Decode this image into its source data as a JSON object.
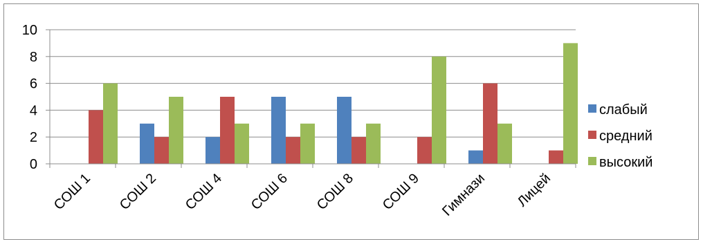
{
  "chart_data": {
    "type": "bar",
    "title": "",
    "xlabel": "",
    "ylabel": "",
    "categories": [
      "СОШ 1",
      "СОШ 2",
      "СОШ 4",
      "СОШ 6",
      "СОШ 8",
      "СОШ 9",
      "Гимнази",
      "Лицей"
    ],
    "series": [
      {
        "name": "слабый",
        "color": "#4f81bd",
        "values": [
          0,
          3,
          2,
          5,
          5,
          0,
          1,
          0
        ]
      },
      {
        "name": "средний",
        "color": "#c0504d",
        "values": [
          4,
          2,
          5,
          2,
          2,
          2,
          6,
          1
        ]
      },
      {
        "name": "высокий",
        "color": "#9bbb59",
        "values": [
          6,
          5,
          3,
          3,
          3,
          8,
          3,
          9
        ]
      }
    ],
    "ylim": [
      0,
      10
    ],
    "yticks": [
      0,
      2,
      4,
      6,
      8,
      10
    ],
    "grid": true,
    "legend": "right"
  }
}
